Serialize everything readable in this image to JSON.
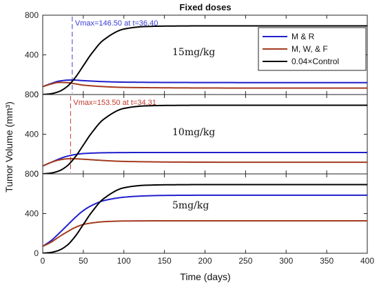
{
  "chart_data": {
    "type": "line",
    "title": "Fixed doses",
    "xlabel": "Time (days)",
    "ylabel": "Tumor Volume (mm³)",
    "xlim": [
      0,
      400
    ],
    "ylim": [
      0,
      800
    ],
    "x_ticks": [
      "0",
      "50",
      "100",
      "150",
      "200",
      "250",
      "300",
      "350",
      "400"
    ],
    "y_ticks": [
      "0",
      "400",
      "800"
    ],
    "grid": false,
    "legend": {
      "placement": "top-right",
      "entries": [
        {
          "label": "M & R",
          "color": "#1f1fcc"
        },
        {
          "label": "M, W, & F",
          "color": "#a33a1e"
        },
        {
          "label": "0.04×Control",
          "color": "#000000"
        }
      ]
    },
    "panels": [
      {
        "dose_label": "15mg/kg",
        "annotation": {
          "text": "Vmax=146.50 at t=36.40",
          "x": 36.4,
          "color": "#3a3ad6"
        },
        "series": [
          {
            "name": "M & R",
            "color": "#1f1fcc",
            "x": [
              0,
              10,
              20,
              30,
              36.4,
              50,
              75,
              100,
              150,
              200,
              300,
              400
            ],
            "y": [
              80,
              110,
              135,
              145,
              146.5,
              140,
              130,
              125,
              122,
              121,
              120,
              120
            ]
          },
          {
            "name": "M, W, & F",
            "color": "#a33a1e",
            "x": [
              0,
              10,
              20,
              30,
              40,
              50,
              75,
              100,
              150,
              200,
              300,
              400
            ],
            "y": [
              80,
              105,
              122,
              120,
              108,
              95,
              80,
              72,
              68,
              66,
              65,
              65
            ]
          },
          {
            "name": "0.04×Control",
            "color": "#000000",
            "x": [
              0,
              10,
              20,
              30,
              40,
              50,
              60,
              75,
              100,
              125,
              150,
              200,
              300,
              400
            ],
            "y": [
              0,
              8,
              30,
              80,
              170,
              290,
              410,
              550,
              660,
              685,
              690,
              692,
              692,
              692
            ]
          }
        ]
      },
      {
        "dose_label": "10mg/kg",
        "annotation": {
          "text": "Vmax=153.50 at t=34.31",
          "x": 34.31,
          "color": "#c0392b"
        },
        "series": [
          {
            "name": "M & R",
            "color": "#1f1fcc",
            "x": [
              0,
              10,
              20,
              30,
              40,
              50,
              75,
              100,
              150,
              200,
              300,
              400
            ],
            "y": [
              80,
              115,
              150,
              178,
              195,
              205,
              213,
              215,
              216,
              216,
              216,
              216
            ]
          },
          {
            "name": "M, W, & F",
            "color": "#a33a1e",
            "x": [
              0,
              10,
              20,
              30,
              34.31,
              50,
              75,
              100,
              150,
              200,
              300,
              400
            ],
            "y": [
              80,
              115,
              140,
              152,
              153.5,
              148,
              135,
              126,
              120,
              118,
              117,
              117
            ]
          },
          {
            "name": "0.04×Control",
            "color": "#000000",
            "x": [
              0,
              10,
              20,
              30,
              40,
              50,
              60,
              75,
              100,
              125,
              150,
              200,
              300,
              400
            ],
            "y": [
              0,
              8,
              30,
              80,
              170,
              290,
              410,
              550,
              660,
              685,
              690,
              692,
              692,
              692
            ]
          }
        ]
      },
      {
        "dose_label": "5mg/kg",
        "series": [
          {
            "name": "M & R",
            "color": "#1f1fcc",
            "x": [
              0,
              10,
              20,
              30,
              40,
              50,
              60,
              75,
              100,
              125,
              150,
              200,
              300,
              400
            ],
            "y": [
              70,
              125,
              200,
              280,
              360,
              430,
              480,
              530,
              565,
              578,
              583,
              585,
              585,
              585
            ]
          },
          {
            "name": "M, W, & F",
            "color": "#a33a1e",
            "x": [
              0,
              10,
              20,
              30,
              40,
              50,
              60,
              75,
              100,
              150,
              200,
              300,
              400
            ],
            "y": [
              70,
              110,
              165,
              215,
              260,
              290,
              305,
              318,
              325,
              327,
              327,
              327,
              327
            ]
          },
          {
            "name": "0.04×Control",
            "color": "#000000",
            "x": [
              0,
              10,
              20,
              30,
              40,
              50,
              60,
              75,
              100,
              125,
              150,
              200,
              300,
              400
            ],
            "y": [
              0,
              8,
              30,
              80,
              170,
              290,
              410,
              550,
              660,
              685,
              690,
              692,
              692,
              692
            ]
          }
        ]
      }
    ]
  }
}
